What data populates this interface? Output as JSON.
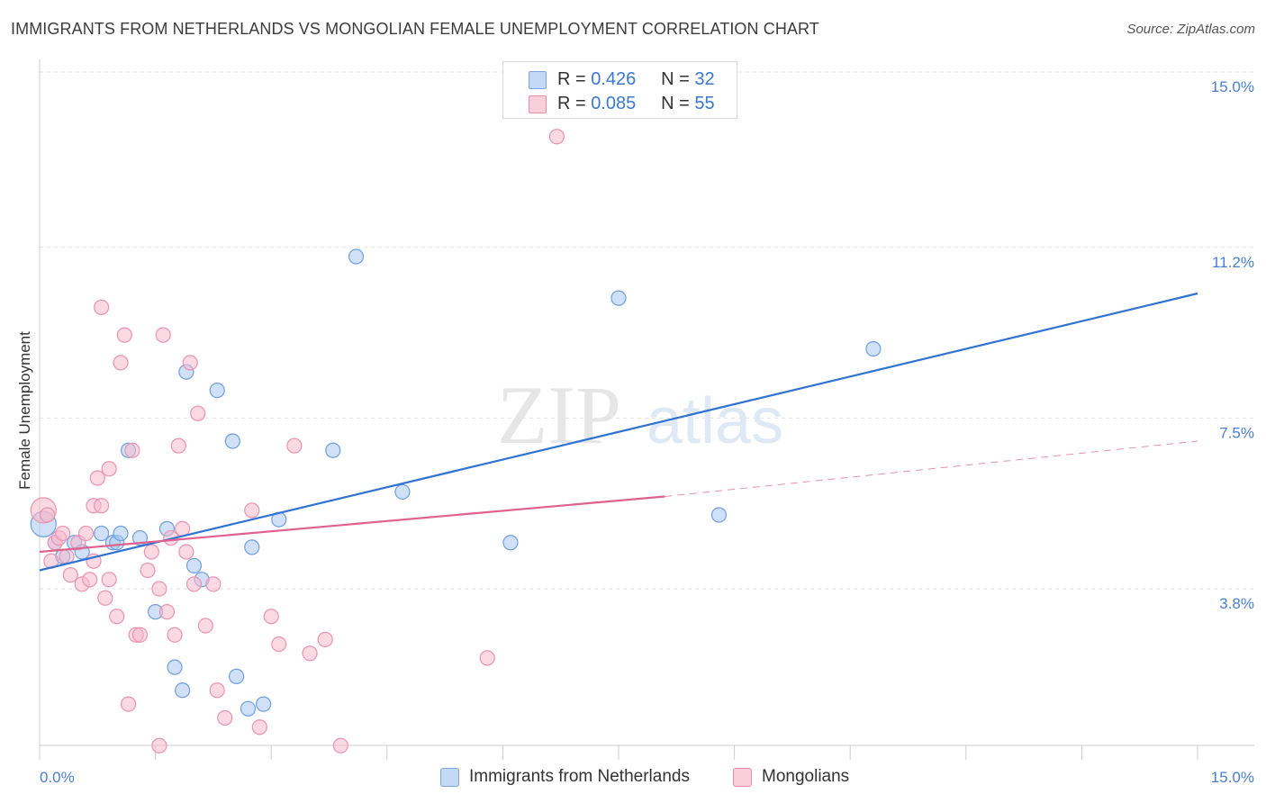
{
  "title": "IMMIGRANTS FROM NETHERLANDS VS MONGOLIAN FEMALE UNEMPLOYMENT CORRELATION CHART",
  "source": "Source: ZipAtlas.com",
  "watermark": {
    "zip": "ZIP",
    "atlas": "atlas"
  },
  "legend": {
    "r_label": "R =",
    "n_label": "N =",
    "rows": [
      {
        "r": "0.426",
        "n": "32",
        "color": "#a9c8f1",
        "border": "#7aa6e3"
      },
      {
        "r": "0.085",
        "n": "55",
        "color": "#f6b9cc",
        "border": "#e98aaa"
      }
    ]
  },
  "chart_data": {
    "type": "scatter",
    "title": "IMMIGRANTS FROM NETHERLANDS VS MONGOLIAN FEMALE UNEMPLOYMENT CORRELATION CHART",
    "xlabel": "",
    "ylabel": "Female Unemployment",
    "xlim": [
      0,
      15
    ],
    "ylim": [
      0,
      15.5
    ],
    "x_tick_labels": {
      "left": "0.0%",
      "right": "15.0%"
    },
    "y_ticks": [
      {
        "value": 3.8,
        "label": "3.8%"
      },
      {
        "value": 7.5,
        "label": "7.5%"
      },
      {
        "value": 11.2,
        "label": "11.2%"
      },
      {
        "value": 15.0,
        "label": "15.0%"
      }
    ],
    "series": [
      {
        "name": "Immigrants from Netherlands",
        "color": "#a9c8f1",
        "stroke": "#6f9fe0",
        "trend_color": "#3173d1",
        "trend": {
          "x0": 0,
          "y0": 4.2,
          "x1": 15,
          "y1": 10.2,
          "dashed_from": null
        },
        "points": [
          [
            0.05,
            5.2
          ],
          [
            0.2,
            4.8
          ],
          [
            0.3,
            4.5
          ],
          [
            0.45,
            4.8
          ],
          [
            0.55,
            4.6
          ],
          [
            0.8,
            5.0
          ],
          [
            0.95,
            4.8
          ],
          [
            1.0,
            4.8
          ],
          [
            1.05,
            5.0
          ],
          [
            1.15,
            6.8
          ],
          [
            1.3,
            4.9
          ],
          [
            1.5,
            3.3
          ],
          [
            1.65,
            5.1
          ],
          [
            1.75,
            2.1
          ],
          [
            1.85,
            1.6
          ],
          [
            1.9,
            8.5
          ],
          [
            2.0,
            4.3
          ],
          [
            2.1,
            4.0
          ],
          [
            2.3,
            8.1
          ],
          [
            2.5,
            7.0
          ],
          [
            2.55,
            1.9
          ],
          [
            2.7,
            1.2
          ],
          [
            2.75,
            4.7
          ],
          [
            2.9,
            1.3
          ],
          [
            3.1,
            5.3
          ],
          [
            3.8,
            6.8
          ],
          [
            4.1,
            11.0
          ],
          [
            4.7,
            5.9
          ],
          [
            6.1,
            4.8
          ],
          [
            7.5,
            10.1
          ],
          [
            8.8,
            5.4
          ],
          [
            10.8,
            9.0
          ]
        ]
      },
      {
        "name": "Mongolians",
        "color": "#f6b9cc",
        "stroke": "#e994b1",
        "trend_color": "#e0608e",
        "trend": {
          "x0": 0,
          "y0": 4.6,
          "x1": 8.1,
          "y1": 5.8,
          "dashed_to_x": 15,
          "dashed_to_y": 7.0
        },
        "points": [
          [
            0.05,
            5.5
          ],
          [
            0.1,
            5.4
          ],
          [
            0.15,
            4.4
          ],
          [
            0.2,
            4.8
          ],
          [
            0.25,
            4.9
          ],
          [
            0.3,
            5.0
          ],
          [
            0.35,
            4.5
          ],
          [
            0.4,
            4.1
          ],
          [
            0.5,
            4.8
          ],
          [
            0.55,
            3.9
          ],
          [
            0.6,
            5.0
          ],
          [
            0.65,
            4.0
          ],
          [
            0.7,
            4.4
          ],
          [
            0.7,
            5.6
          ],
          [
            0.75,
            6.2
          ],
          [
            0.8,
            5.6
          ],
          [
            0.8,
            9.9
          ],
          [
            0.85,
            3.6
          ],
          [
            0.9,
            4.0
          ],
          [
            0.9,
            6.4
          ],
          [
            1.0,
            3.2
          ],
          [
            1.05,
            8.7
          ],
          [
            1.1,
            9.3
          ],
          [
            1.15,
            1.3
          ],
          [
            1.2,
            6.8
          ],
          [
            1.25,
            2.8
          ],
          [
            1.3,
            2.8
          ],
          [
            1.4,
            4.2
          ],
          [
            1.45,
            4.6
          ],
          [
            1.55,
            3.8
          ],
          [
            1.6,
            9.3
          ],
          [
            1.65,
            3.3
          ],
          [
            1.7,
            4.9
          ],
          [
            1.75,
            2.8
          ],
          [
            1.8,
            6.9
          ],
          [
            1.85,
            5.1
          ],
          [
            1.9,
            4.6
          ],
          [
            1.95,
            8.7
          ],
          [
            2.0,
            3.9
          ],
          [
            2.05,
            7.6
          ],
          [
            2.15,
            3.0
          ],
          [
            2.25,
            3.9
          ],
          [
            2.3,
            1.6
          ],
          [
            2.4,
            1.0
          ],
          [
            2.75,
            5.5
          ],
          [
            2.85,
            0.8
          ],
          [
            3.0,
            3.2
          ],
          [
            3.1,
            2.6
          ],
          [
            3.3,
            6.9
          ],
          [
            3.5,
            2.4
          ],
          [
            3.7,
            2.7
          ],
          [
            3.9,
            0.4
          ],
          [
            5.8,
            2.3
          ],
          [
            6.7,
            13.6
          ],
          [
            1.55,
            0.4
          ]
        ]
      }
    ]
  }
}
